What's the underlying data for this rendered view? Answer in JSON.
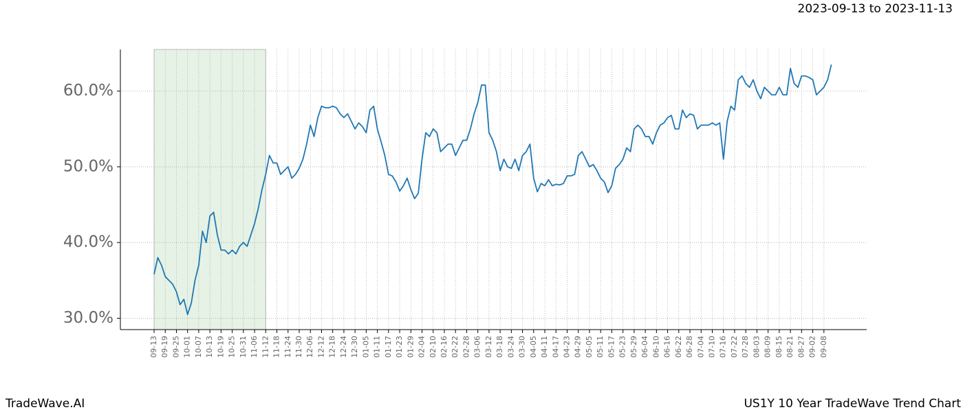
{
  "chart_data": {
    "type": "line",
    "title": "2023-09-13 to 2023-11-13",
    "footer_left": "TradeWave.AI",
    "footer_right": "US1Y 10 Year TradeWave Trend Chart",
    "categories": [
      "09-13",
      null,
      null,
      "09-19",
      null,
      null,
      "09-25",
      null,
      null,
      "10-01",
      null,
      null,
      "10-07",
      null,
      null,
      "10-13",
      null,
      null,
      "10-19",
      null,
      null,
      "10-25",
      null,
      null,
      "10-31",
      null,
      null,
      "11-06",
      null,
      null,
      "11-12",
      null,
      null,
      "11-18",
      null,
      null,
      "11-24",
      null,
      null,
      "11-30",
      null,
      null,
      "12-06",
      null,
      null,
      "12-12",
      null,
      null,
      "12-18",
      null,
      null,
      "12-24",
      null,
      null,
      "12-30",
      null,
      null,
      "01-05",
      null,
      null,
      "01-11",
      null,
      null,
      "01-17",
      null,
      null,
      "01-23",
      null,
      null,
      "01-29",
      null,
      null,
      "02-04",
      null,
      null,
      "02-10",
      null,
      null,
      "02-16",
      null,
      null,
      "02-22",
      null,
      null,
      "02-28",
      null,
      null,
      "03-06",
      null,
      null,
      "03-12",
      null,
      null,
      "03-18",
      null,
      null,
      "03-24",
      null,
      null,
      "03-30",
      null,
      null,
      "04-05",
      null,
      null,
      "04-11",
      null,
      null,
      "04-17",
      null,
      null,
      "04-23",
      null,
      null,
      "04-29",
      null,
      null,
      "05-05",
      null,
      null,
      "05-11",
      null,
      null,
      "05-17",
      null,
      null,
      "05-23",
      null,
      null,
      "05-29",
      null,
      null,
      "06-04",
      null,
      null,
      "06-10",
      null,
      null,
      "06-16",
      null,
      null,
      "06-22",
      null,
      null,
      "06-28",
      null,
      null,
      "07-04",
      null,
      null,
      "07-10",
      null,
      null,
      "07-16",
      null,
      null,
      "07-22",
      null,
      null,
      "07-28",
      null,
      null,
      "08-03",
      null,
      null,
      "08-09",
      null,
      null,
      "08-15",
      null,
      null,
      "08-21",
      null,
      null,
      "08-27",
      null,
      null,
      "09-02",
      null,
      null,
      "09-08",
      null,
      null
    ],
    "series": [
      {
        "color": "#1f77b4",
        "values": [
          35.8,
          38,
          37,
          35.5,
          35,
          34.5,
          33.5,
          31.8,
          32.5,
          30.5,
          32,
          35,
          37,
          41.5,
          40,
          43.5,
          44,
          41,
          39,
          39,
          38.5,
          39,
          38.5,
          39.5,
          40,
          39.5,
          41,
          42.5,
          44.5,
          47,
          49,
          51.5,
          50.5,
          50.5,
          49,
          49.5,
          50,
          48.5,
          49,
          49.8,
          51,
          53,
          55.5,
          54,
          56.5,
          58,
          57.8,
          57.8,
          58,
          57.8,
          57,
          56.5,
          57,
          56,
          55,
          55.8,
          55.3,
          54.5,
          57.5,
          58,
          55,
          53.3,
          51.5,
          49,
          48.8,
          48,
          46.8,
          47.5,
          48.5,
          47,
          45.8,
          46.5,
          51,
          54.5,
          54,
          55,
          54.5,
          52,
          52.5,
          53,
          53,
          51.5,
          52.5,
          53.5,
          53.5,
          55,
          57,
          58.5,
          60.8,
          60.8,
          54.5,
          53.5,
          52,
          49.5,
          51,
          50,
          49.8,
          51,
          49.5,
          51.5,
          52,
          53,
          48.5,
          46.7,
          47.8,
          47.5,
          48.3,
          47.5,
          47.7,
          47.6,
          47.8,
          48.8,
          48.8,
          49,
          51.5,
          52,
          51,
          50,
          50.3,
          49.5,
          48.5,
          48,
          46.6,
          47.5,
          49.8,
          50.3,
          51,
          52.5,
          52,
          55,
          55.5,
          55,
          54,
          54,
          53,
          54.5,
          55.5,
          55.8,
          56.5,
          56.8,
          55,
          55,
          57.5,
          56.5,
          57,
          56.8,
          55,
          55.5,
          55.5,
          55.5,
          55.8,
          55.5,
          55.8,
          51,
          56,
          58,
          57.5,
          61.5,
          62,
          61,
          60.5,
          61.5,
          60,
          59,
          60.5,
          60,
          59.5,
          59.5,
          60.5,
          59.5,
          59.5,
          63,
          61,
          60.5,
          62,
          62,
          61.8,
          61.5,
          59.5,
          60,
          60.5,
          61.5,
          63.5
        ]
      }
    ],
    "shaded_range": [
      "09-13",
      "11-12"
    ],
    "shade_color": "#e5f2e5",
    "ylim": [
      28.5,
      65.5
    ],
    "yticks": [
      {
        "value": 30,
        "label": "30.0%"
      },
      {
        "value": 40,
        "label": "40.0%"
      },
      {
        "value": 50,
        "label": "50.0%"
      },
      {
        "value": 60,
        "label": "60.0%"
      }
    ],
    "grid": true
  }
}
